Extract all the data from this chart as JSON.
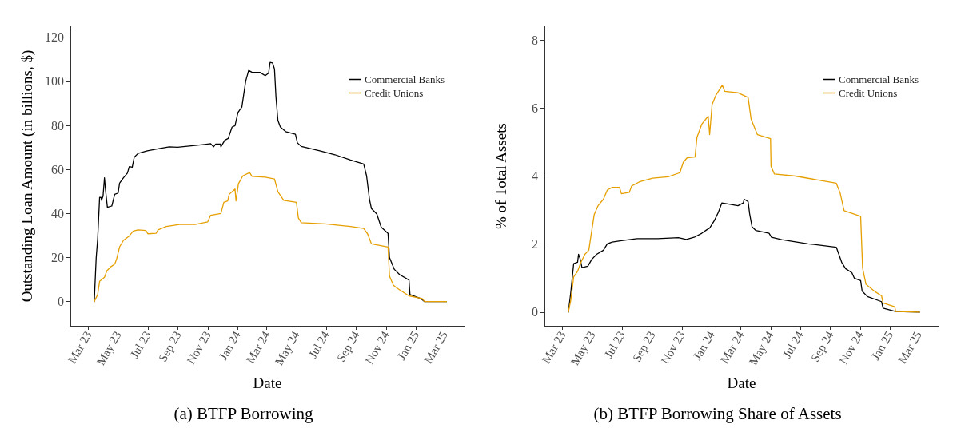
{
  "chart_data": [
    {
      "type": "line",
      "title": "(a) BTFP Borrowing",
      "xlabel": "Date",
      "ylabel": "Outstanding Loan Amount (in billions, $)",
      "legend": "top right",
      "grid": false,
      "marker": "none",
      "line_style": "solid",
      "xlim": [
        "2023-01-23",
        "2025-04-11"
      ],
      "xticks": [
        {
          "value": "2023-03-01",
          "label": "Mar 23"
        },
        {
          "value": "2023-05-01",
          "label": "May 23"
        },
        {
          "value": "2023-07-01",
          "label": "Jul 23"
        },
        {
          "value": "2023-09-01",
          "label": "Sep 23"
        },
        {
          "value": "2023-11-01",
          "label": "Nov 23"
        },
        {
          "value": "2024-01-01",
          "label": "Jan 24"
        },
        {
          "value": "2024-03-01",
          "label": "Mar 24"
        },
        {
          "value": "2024-05-01",
          "label": "May 24"
        },
        {
          "value": "2024-07-01",
          "label": "Jul 24"
        },
        {
          "value": "2024-09-01",
          "label": "Sep 24"
        },
        {
          "value": "2024-11-01",
          "label": "Nov 24"
        },
        {
          "value": "2025-01-01",
          "label": "Jan 25"
        },
        {
          "value": "2025-03-01",
          "label": "Mar 25"
        }
      ],
      "ylim": [
        -11,
        125
      ],
      "yticks": [
        0,
        20,
        40,
        60,
        80,
        100,
        120
      ],
      "series": [
        {
          "name": "Commercial Banks",
          "color": "#000000",
          "x": [
            "2023-03-13",
            "2023-03-17",
            "2023-03-20",
            "2023-03-24",
            "2023-03-27",
            "2023-03-28",
            "2023-03-31",
            "2023-04-03",
            "2023-04-05",
            "2023-04-09",
            "2023-04-18",
            "2023-04-24",
            "2023-05-01",
            "2023-05-04",
            "2023-05-12",
            "2023-05-20",
            "2023-05-24",
            "2023-05-30",
            "2023-06-03",
            "2023-06-11",
            "2023-06-30",
            "2023-07-24",
            "2023-08-14",
            "2023-08-31",
            "2023-10-06",
            "2023-11-07",
            "2023-11-13",
            "2023-11-17",
            "2023-11-27",
            "2023-11-28",
            "2023-12-06",
            "2023-12-13",
            "2023-12-21",
            "2023-12-27",
            "2024-01-02",
            "2024-01-10",
            "2024-01-18",
            "2024-01-24",
            "2024-01-31",
            "2024-02-16",
            "2024-02-27",
            "2024-03-05",
            "2024-03-08",
            "2024-03-13",
            "2024-03-17",
            "2024-03-20",
            "2024-03-24",
            "2024-03-29",
            "2024-04-09",
            "2024-04-29",
            "2024-05-03",
            "2024-05-11",
            "2024-06-18",
            "2024-07-19",
            "2024-08-20",
            "2024-09-16",
            "2024-09-22",
            "2024-09-28",
            "2024-10-02",
            "2024-10-13",
            "2024-10-22",
            "2024-11-05",
            "2024-11-08",
            "2024-11-18",
            "2024-11-29",
            "2024-12-18",
            "2024-12-20",
            "2025-01-11",
            "2025-01-19",
            "2025-03-05"
          ],
          "values": [
            0,
            20,
            28.4,
            47.3,
            47.3,
            46,
            47.8,
            56.2,
            51,
            42.8,
            43.4,
            48.7,
            49.3,
            53.8,
            56.2,
            58.3,
            61.3,
            61,
            65.5,
            67.3,
            68.5,
            69.5,
            70.3,
            70.1,
            70.9,
            71.7,
            70.3,
            71.5,
            71.5,
            70.3,
            73.3,
            74.1,
            79.3,
            79.9,
            85.9,
            88.3,
            100.2,
            105,
            104.1,
            104.1,
            102.6,
            103.8,
            108.6,
            108.4,
            105.6,
            93,
            82.3,
            79.3,
            77.2,
            76,
            72.1,
            70.5,
            68.5,
            66.7,
            64.3,
            62.5,
            57.1,
            46.3,
            42.2,
            39.8,
            33.8,
            31,
            20,
            14.6,
            12.2,
            9.8,
            3.2,
            1.4,
            0,
            0
          ]
        },
        {
          "name": "Credit Unions",
          "color": "#e69f00",
          "x": [
            "2023-03-13",
            "2023-03-20",
            "2023-03-24",
            "2023-04-03",
            "2023-04-08",
            "2023-04-16",
            "2023-04-24",
            "2023-04-28",
            "2023-05-04",
            "2023-05-12",
            "2023-05-23",
            "2023-06-01",
            "2023-06-11",
            "2023-06-27",
            "2023-07-01",
            "2023-07-18",
            "2023-07-22",
            "2023-08-08",
            "2023-09-04",
            "2023-10-06",
            "2023-11-01",
            "2023-11-07",
            "2023-11-28",
            "2023-12-04",
            "2023-12-12",
            "2023-12-15",
            "2023-12-27",
            "2023-12-29",
            "2024-01-03",
            "2024-01-12",
            "2024-01-26",
            "2024-01-31",
            "2024-02-27",
            "2024-03-17",
            "2024-03-24",
            "2024-04-05",
            "2024-05-01",
            "2024-05-05",
            "2024-05-11",
            "2024-06-29",
            "2024-08-20",
            "2024-09-16",
            "2024-09-24",
            "2024-10-02",
            "2024-11-05",
            "2024-11-08",
            "2024-11-16",
            "2024-11-27",
            "2024-12-18",
            "2025-01-14",
            "2025-01-19",
            "2025-03-05"
          ],
          "values": [
            0,
            3.2,
            9.2,
            11,
            14,
            15.8,
            17,
            19.4,
            24.8,
            27.8,
            29.6,
            32,
            32.6,
            32.3,
            30.8,
            31,
            32.6,
            34.1,
            35,
            35,
            36.2,
            39.2,
            40,
            45.1,
            45.7,
            48.7,
            51.1,
            45.7,
            53.5,
            57.1,
            58.6,
            56.9,
            56.5,
            55.7,
            49.9,
            46,
            45.1,
            38,
            35.8,
            35.3,
            34.1,
            33.2,
            30.8,
            26.2,
            24.8,
            11.6,
            7.4,
            5.6,
            2.6,
            1.4,
            0,
            0
          ]
        }
      ]
    },
    {
      "type": "line",
      "title": "(b) BTFP Borrowing Share of Assets",
      "xlabel": "Date",
      "ylabel": "% of Total Assets",
      "legend": "top right",
      "grid": false,
      "marker": "none",
      "line_style": "solid",
      "xlim": [
        "2023-01-23",
        "2025-04-11"
      ],
      "xticks": [
        {
          "value": "2023-03-01",
          "label": "Mar 23"
        },
        {
          "value": "2023-05-01",
          "label": "May 23"
        },
        {
          "value": "2023-07-01",
          "label": "Jul 23"
        },
        {
          "value": "2023-09-01",
          "label": "Sep 23"
        },
        {
          "value": "2023-11-01",
          "label": "Nov 23"
        },
        {
          "value": "2024-01-01",
          "label": "Jan 24"
        },
        {
          "value": "2024-03-01",
          "label": "Mar 24"
        },
        {
          "value": "2024-05-01",
          "label": "May 24"
        },
        {
          "value": "2024-07-01",
          "label": "Jul 24"
        },
        {
          "value": "2024-09-01",
          "label": "Sep 24"
        },
        {
          "value": "2024-11-01",
          "label": "Nov 24"
        },
        {
          "value": "2025-01-01",
          "label": "Jan 25"
        },
        {
          "value": "2025-03-01",
          "label": "Mar 25"
        }
      ],
      "ylim": [
        -0.4,
        8.4
      ],
      "yticks": [
        0,
        2,
        4,
        6,
        8
      ],
      "series": [
        {
          "name": "Commercial Banks",
          "color": "#000000",
          "x": [
            "2023-03-13",
            "2023-03-18",
            "2023-03-24",
            "2023-04-01",
            "2023-04-03",
            "2023-04-06",
            "2023-04-10",
            "2023-04-22",
            "2023-04-30",
            "2023-05-10",
            "2023-05-24",
            "2023-06-01",
            "2023-06-11",
            "2023-06-30",
            "2023-08-01",
            "2023-09-12",
            "2023-10-25",
            "2023-11-10",
            "2023-11-26",
            "2023-12-12",
            "2023-12-23",
            "2023-12-28",
            "2024-01-07",
            "2024-01-15",
            "2024-01-22",
            "2024-02-08",
            "2024-02-24",
            "2024-03-06",
            "2024-03-08",
            "2024-03-16",
            "2024-03-19",
            "2024-03-24",
            "2024-04-01",
            "2024-04-28",
            "2024-05-03",
            "2024-05-24",
            "2024-07-17",
            "2024-09-13",
            "2024-09-24",
            "2024-10-02",
            "2024-10-15",
            "2024-10-20",
            "2024-11-02",
            "2024-11-05",
            "2024-11-16",
            "2024-12-15",
            "2024-12-18",
            "2025-01-13",
            "2025-03-03"
          ],
          "values": [
            0,
            0.58,
            1.43,
            1.47,
            1.7,
            1.58,
            1.31,
            1.35,
            1.55,
            1.7,
            1.82,
            2.01,
            2.06,
            2.1,
            2.16,
            2.16,
            2.19,
            2.14,
            2.2,
            2.32,
            2.43,
            2.47,
            2.7,
            2.94,
            3.21,
            3.17,
            3.13,
            3.21,
            3.32,
            3.25,
            2.9,
            2.51,
            2.4,
            2.32,
            2.2,
            2.13,
            2.01,
            1.91,
            1.47,
            1.28,
            1.16,
            1,
            0.93,
            0.62,
            0.46,
            0.31,
            0.12,
            0.02,
            0
          ]
        },
        {
          "name": "Credit Unions",
          "color": "#e69f00",
          "x": [
            "2023-03-13",
            "2023-03-18",
            "2023-03-24",
            "2023-04-01",
            "2023-04-08",
            "2023-04-16",
            "2023-04-24",
            "2023-04-28",
            "2023-05-05",
            "2023-05-13",
            "2023-05-24",
            "2023-06-01",
            "2023-06-11",
            "2023-06-26",
            "2023-06-30",
            "2023-07-16",
            "2023-07-21",
            "2023-08-06",
            "2023-09-02",
            "2023-10-04",
            "2023-10-28",
            "2023-11-04",
            "2023-11-12",
            "2023-11-28",
            "2023-12-02",
            "2023-12-12",
            "2023-12-25",
            "2023-12-28",
            "2024-01-02",
            "2024-01-10",
            "2024-01-23",
            "2024-01-28",
            "2024-02-24",
            "2024-03-16",
            "2024-03-22",
            "2024-04-04",
            "2024-05-01",
            "2024-05-02",
            "2024-05-09",
            "2024-06-21",
            "2024-08-13",
            "2024-09-13",
            "2024-09-21",
            "2024-09-29",
            "2024-11-02",
            "2024-11-06",
            "2024-11-13",
            "2024-12-02",
            "2024-12-15",
            "2024-12-18",
            "2025-01-11",
            "2025-01-13",
            "2025-03-03"
          ],
          "values": [
            0,
            0.35,
            1.04,
            1.2,
            1.47,
            1.7,
            1.82,
            2.2,
            2.86,
            3.13,
            3.32,
            3.59,
            3.67,
            3.67,
            3.48,
            3.52,
            3.71,
            3.83,
            3.94,
            3.98,
            4.1,
            4.41,
            4.54,
            4.56,
            5.14,
            5.53,
            5.76,
            5.22,
            6.1,
            6.38,
            6.67,
            6.49,
            6.45,
            6.31,
            5.68,
            5.22,
            5.1,
            4.29,
            4.06,
            4,
            3.87,
            3.79,
            3.5,
            2.98,
            2.82,
            1.3,
            0.82,
            0.6,
            0.48,
            0.27,
            0.16,
            0.02,
            0
          ]
        }
      ]
    }
  ]
}
